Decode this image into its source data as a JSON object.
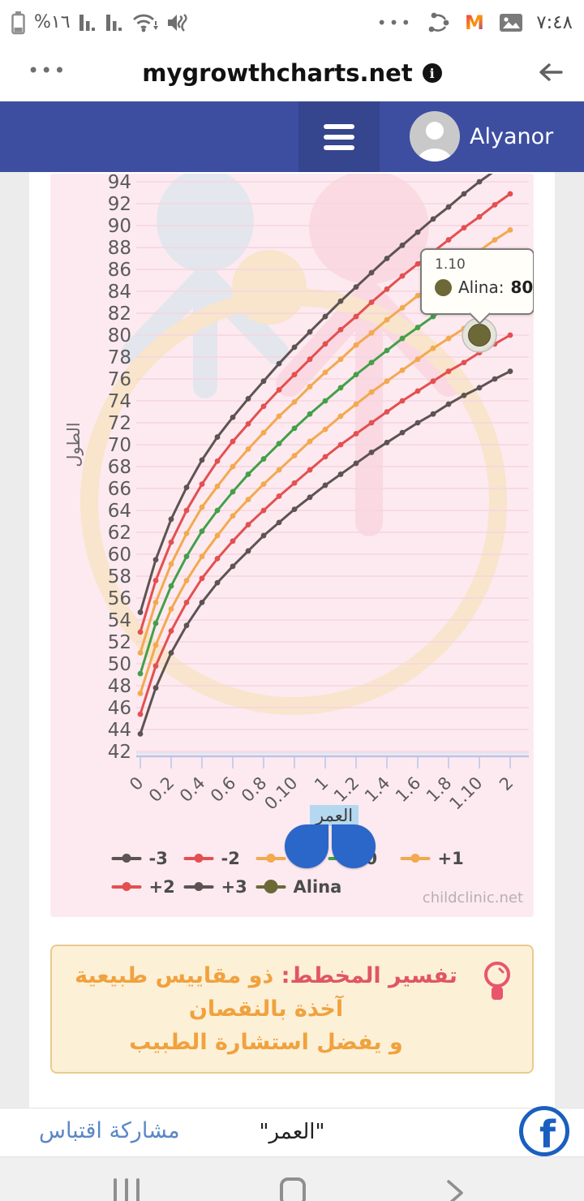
{
  "status_bar": {
    "battery_percent": "%١٦",
    "time": "٧:٤٨",
    "overflow_dots": "•••"
  },
  "browser": {
    "menu_dots": "•••",
    "url": "mygrowthcharts.net",
    "info_glyph": "i"
  },
  "header": {
    "username": "Alyanor",
    "bg_color": "#3d4ea1"
  },
  "chart_data": {
    "type": "line",
    "title": "",
    "xlabel": "العمر",
    "ylabel": "الطول",
    "x_unit": "year.month",
    "x_months": [
      0,
      1,
      2,
      3,
      4,
      5,
      6,
      7,
      8,
      9,
      10,
      11,
      12,
      13,
      14,
      15,
      16,
      17,
      18,
      19,
      20,
      21,
      22,
      23,
      24
    ],
    "x_tick_labels": [
      "0",
      "0.2",
      "0.4",
      "0.6",
      "0.8",
      "0.10",
      "1",
      "1.2",
      "1.4",
      "1.6",
      "1.8",
      "1.10",
      "2"
    ],
    "ylim": [
      42,
      94.7
    ],
    "ytick_step": 2,
    "grid": true,
    "legend_position": "bottom",
    "series": [
      {
        "name": "+3",
        "color": "#5d5353",
        "values": [
          54.7,
          59.5,
          63.2,
          66.1,
          68.6,
          70.7,
          72.5,
          74.2,
          75.8,
          77.4,
          78.9,
          80.3,
          81.7,
          83.1,
          84.4,
          85.7,
          87.0,
          88.2,
          89.4,
          90.6,
          91.7,
          92.9,
          94.0,
          95.0,
          96.0
        ]
      },
      {
        "name": "+2",
        "color": "#e35050",
        "values": [
          52.9,
          57.6,
          61.1,
          64.0,
          66.4,
          68.5,
          70.3,
          71.9,
          73.5,
          75.0,
          76.4,
          77.8,
          79.2,
          80.5,
          81.7,
          83.0,
          84.2,
          85.4,
          86.5,
          87.6,
          88.7,
          89.8,
          90.8,
          91.9,
          92.9
        ]
      },
      {
        "name": "+1",
        "color": "#f2a94f",
        "values": [
          51.0,
          55.6,
          59.1,
          61.9,
          64.3,
          66.2,
          68.0,
          69.6,
          71.1,
          72.6,
          73.9,
          75.3,
          76.6,
          77.8,
          79.1,
          80.2,
          81.4,
          82.5,
          83.6,
          84.7,
          85.7,
          86.7,
          87.7,
          88.7,
          89.6
        ]
      },
      {
        "name": "0",
        "color": "#43a049",
        "values": [
          49.1,
          53.7,
          57.1,
          59.8,
          62.1,
          64.0,
          65.7,
          67.3,
          68.7,
          70.1,
          71.5,
          72.8,
          74.0,
          75.2,
          76.4,
          77.5,
          78.6,
          79.7,
          80.7,
          81.7,
          82.7,
          83.7,
          84.6,
          85.5,
          86.4
        ]
      },
      {
        "name": "-1",
        "color": "#f2a94f",
        "values": [
          47.3,
          51.7,
          55.0,
          57.6,
          59.8,
          61.7,
          63.5,
          65.0,
          66.4,
          67.7,
          69.0,
          70.3,
          71.4,
          72.6,
          73.7,
          74.8,
          75.8,
          76.8,
          77.8,
          78.8,
          79.7,
          80.6,
          81.5,
          82.3,
          83.2
        ]
      },
      {
        "name": "-2",
        "color": "#e35050",
        "values": [
          45.4,
          49.8,
          53.0,
          55.6,
          57.8,
          59.6,
          61.2,
          62.7,
          64.0,
          65.3,
          66.5,
          67.7,
          68.9,
          70.0,
          71.0,
          72.0,
          73.0,
          74.0,
          74.9,
          75.8,
          76.7,
          77.5,
          78.4,
          79.2,
          80.0
        ]
      },
      {
        "name": "-3",
        "color": "#5d5353",
        "values": [
          43.6,
          47.8,
          51.0,
          53.5,
          55.6,
          57.4,
          58.9,
          60.3,
          61.7,
          62.9,
          64.1,
          65.2,
          66.3,
          67.3,
          68.3,
          69.3,
          70.2,
          71.1,
          72.0,
          72.8,
          73.7,
          74.5,
          75.2,
          76.0,
          76.7
        ]
      }
    ],
    "patient_point": {
      "name": "Alina",
      "color": "#6d6837",
      "month": 22,
      "value": 80,
      "x_label": "1.10"
    },
    "legend": [
      {
        "label": "-3",
        "color": "#5d5353",
        "big": false
      },
      {
        "label": "-2",
        "color": "#e35050",
        "big": false
      },
      {
        "label": "-1",
        "color": "#f2a94f",
        "big": false
      },
      {
        "label": "0",
        "color": "#43a049",
        "big": false
      },
      {
        "label": "+1",
        "color": "#f2a94f",
        "big": false
      },
      {
        "label": "+2",
        "color": "#e35050",
        "big": false
      },
      {
        "label": "+3",
        "color": "#5d5353",
        "big": false
      },
      {
        "label": "Alina",
        "color": "#6d6837",
        "big": true
      }
    ],
    "watermark_colors": {
      "blue": "#cfe3ec",
      "pink": "#f9ccd7",
      "yellow": "#f6e0b0"
    },
    "grid_color": "#f5d5e0",
    "axis_color": "#b9c3e6",
    "label_color": "#5b5b5b"
  },
  "tooltip": {
    "line1": "1.10",
    "name": "Alina:",
    "value": "80"
  },
  "selection": {
    "selected_word": "العمر"
  },
  "credit": "childclinic.net",
  "tip_box": {
    "title": "تفسير المخطط:",
    "text1": " ذو مقاييس طبيعية آخذة بالنقصان",
    "text2": "و يفضل استشارة الطبيب"
  },
  "share_bar": {
    "share_link": "مشاركة اقتباس",
    "quote": "\"العمر\""
  }
}
